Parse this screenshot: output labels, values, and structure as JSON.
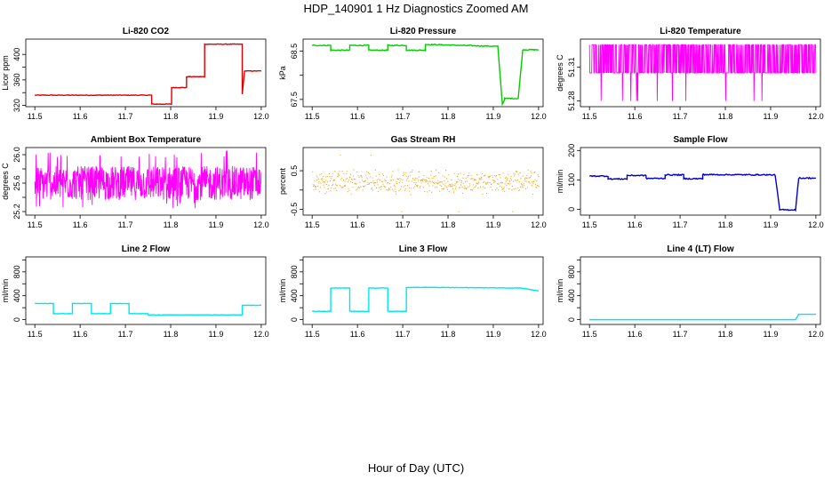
{
  "figure": {
    "title": "HDP_140901  1 Hz Diagnostics Zoomed AM",
    "xlabel": "Hour of Day (UTC)"
  },
  "chart_data": [
    {
      "type": "line",
      "title": "Li-820 CO2",
      "ylabel": "Licor ppm",
      "color": "#dd0000",
      "x_ticks": [
        "11.5",
        "11.6",
        "11.7",
        "11.8",
        "11.9",
        "12.0"
      ],
      "xlim": [
        11.48,
        12.01
      ],
      "y_ticks": [
        320,
        340,
        360,
        380,
        400
      ],
      "y_tick_labels": [
        "320",
        "360",
        "400"
      ],
      "ylim": [
        318,
        424
      ],
      "noise": 0.5,
      "series": [
        {
          "x": [
            11.5,
            11.758,
            11.758,
            11.802,
            11.802,
            11.835,
            11.835,
            11.875,
            11.875,
            11.958,
            11.958,
            11.963,
            11.963,
            12.0
          ],
          "y": [
            336,
            336,
            322,
            322,
            348,
            348,
            365,
            365,
            416,
            416,
            338,
            372,
            374,
            374
          ]
        }
      ]
    },
    {
      "type": "line",
      "title": "Li-820 Pressure",
      "ylabel": "kPa",
      "color": "#00cc00",
      "x_ticks": [
        "11.5",
        "11.6",
        "11.7",
        "11.8",
        "11.9",
        "12.0"
      ],
      "xlim": [
        11.48,
        12.01
      ],
      "y_ticks": [
        67.5,
        68.0,
        68.5
      ],
      "y_tick_labels": [
        "67.5",
        "68.5"
      ],
      "ylim": [
        67.35,
        68.75
      ],
      "noise": 0.01,
      "series": [
        {
          "x": [
            11.5,
            11.541,
            11.541,
            11.583,
            11.583,
            11.625,
            11.625,
            11.667,
            11.667,
            11.708,
            11.708,
            11.75,
            11.75,
            11.91,
            11.92,
            11.925,
            11.925,
            11.955,
            11.965,
            11.965,
            12.0
          ],
          "y": [
            68.62,
            68.62,
            68.52,
            68.52,
            68.62,
            68.62,
            68.52,
            68.52,
            68.62,
            68.62,
            68.52,
            68.52,
            68.64,
            68.6,
            67.4,
            67.5,
            67.52,
            67.52,
            68.52,
            68.53,
            68.53
          ]
        }
      ]
    },
    {
      "type": "line",
      "title": "Li-820 Temperature",
      "ylabel": "degrees C",
      "color": "#ff00ff",
      "x_ticks": [
        "11.5",
        "11.6",
        "11.7",
        "11.8",
        "11.9",
        "12.0"
      ],
      "xlim": [
        11.48,
        12.01
      ],
      "y_ticks": [
        51.28,
        51.31
      ],
      "y_tick_labels": [
        "51.28",
        "51.31"
      ],
      "ylim": [
        51.275,
        51.335
      ],
      "flicker": {
        "levels": [
          51.305,
          51.33
        ],
        "dips": 51.28
      }
    },
    {
      "type": "line",
      "title": "Ambient Box Temperature",
      "ylabel": "degrees C",
      "color": "#ff00ff",
      "x_ticks": [
        "11.5",
        "11.6",
        "11.7",
        "11.8",
        "11.9",
        "12.0"
      ],
      "xlim": [
        11.48,
        12.01
      ],
      "y_ticks": [
        25.2,
        25.4,
        25.6,
        25.8,
        26.0
      ],
      "y_tick_labels": [
        "25.2",
        "25.6",
        "26.0"
      ],
      "ylim": [
        25.15,
        26.1
      ],
      "band": {
        "low": 25.36,
        "high": 25.84,
        "min": 25.22,
        "max": 26.06
      }
    },
    {
      "type": "scatter",
      "title": "Gas Stream RH",
      "ylabel": "percent",
      "color": "#ee9900",
      "x_ticks": [
        "11.5",
        "11.6",
        "11.7",
        "11.8",
        "11.9",
        "12.0"
      ],
      "xlim": [
        11.48,
        12.01
      ],
      "y_ticks": [
        -0.5,
        0.0,
        0.5
      ],
      "y_tick_labels": [
        "-0.5",
        "0.5"
      ],
      "ylim": [
        -0.65,
        1.1
      ],
      "band": {
        "center": 0.22,
        "spread": 0.35,
        "min": -0.55,
        "max": 0.95
      }
    },
    {
      "type": "line",
      "title": "Sample Flow",
      "ylabel": "ml/min",
      "color": "#0000cc",
      "x_ticks": [
        "11.5",
        "11.6",
        "11.7",
        "11.8",
        "11.9",
        "12.0"
      ],
      "xlim": [
        11.48,
        12.01
      ],
      "y_ticks": [
        0,
        100,
        200
      ],
      "y_tick_labels": [
        "0",
        "100",
        "200"
      ],
      "ylim": [
        -20,
        210
      ],
      "noise": 2,
      "series": [
        {
          "x": [
            11.5,
            11.541,
            11.541,
            11.583,
            11.583,
            11.625,
            11.625,
            11.667,
            11.667,
            11.708,
            11.708,
            11.75,
            11.75,
            11.91,
            11.92,
            11.955,
            11.962,
            12.0
          ],
          "y": [
            113,
            113,
            103,
            103,
            115,
            115,
            105,
            105,
            117,
            117,
            104,
            104,
            118,
            117,
            -2,
            -2,
            106,
            106
          ]
        }
      ]
    },
    {
      "type": "line",
      "title": "Line 2 Flow",
      "ylabel": "ml/min",
      "color": "#00e5ee",
      "x_ticks": [
        "11.5",
        "11.6",
        "11.7",
        "11.8",
        "11.9",
        "12.0"
      ],
      "xlim": [
        11.48,
        12.01
      ],
      "y_ticks": [
        0,
        200,
        400,
        600,
        800,
        1000
      ],
      "y_tick_labels": [
        "0",
        "400",
        "800"
      ],
      "ylim": [
        -80,
        1050
      ],
      "noise": 3,
      "series": [
        {
          "x": [
            11.5,
            11.541,
            11.541,
            11.583,
            11.583,
            11.625,
            11.625,
            11.667,
            11.667,
            11.708,
            11.708,
            11.75,
            11.75,
            11.958,
            11.958,
            12.0
          ],
          "y": [
            270,
            270,
            100,
            100,
            270,
            270,
            100,
            100,
            270,
            270,
            100,
            100,
            80,
            80,
            240,
            240
          ]
        }
      ]
    },
    {
      "type": "line",
      "title": "Line 3 Flow",
      "ylabel": "ml/min",
      "color": "#00e5ee",
      "x_ticks": [
        "11.5",
        "11.6",
        "11.7",
        "11.8",
        "11.9",
        "12.0"
      ],
      "xlim": [
        11.48,
        12.01
      ],
      "y_ticks": [
        0,
        200,
        400,
        600,
        800,
        1000
      ],
      "y_tick_labels": [
        "0",
        "400",
        "800"
      ],
      "ylim": [
        -80,
        1050
      ],
      "noise": 4,
      "series": [
        {
          "x": [
            11.5,
            11.541,
            11.541,
            11.583,
            11.583,
            11.625,
            11.625,
            11.667,
            11.667,
            11.708,
            11.708,
            11.75,
            11.96,
            12.0
          ],
          "y": [
            140,
            140,
            530,
            530,
            140,
            140,
            530,
            530,
            140,
            140,
            540,
            540,
            530,
            480
          ]
        }
      ]
    },
    {
      "type": "line",
      "title": "Line 4 (LT) Flow",
      "ylabel": "ml/min",
      "color": "#00e5ee",
      "x_ticks": [
        "11.5",
        "11.6",
        "11.7",
        "11.8",
        "11.9",
        "12.0"
      ],
      "xlim": [
        11.48,
        12.01
      ],
      "y_ticks": [
        0,
        200,
        400,
        600,
        800,
        1000
      ],
      "y_tick_labels": [
        "0",
        "400",
        "800"
      ],
      "ylim": [
        -80,
        1050
      ],
      "noise": 0,
      "series": [
        {
          "x": [
            11.5,
            11.955,
            11.962,
            12.0
          ],
          "y": [
            0,
            0,
            90,
            90
          ]
        }
      ]
    }
  ]
}
